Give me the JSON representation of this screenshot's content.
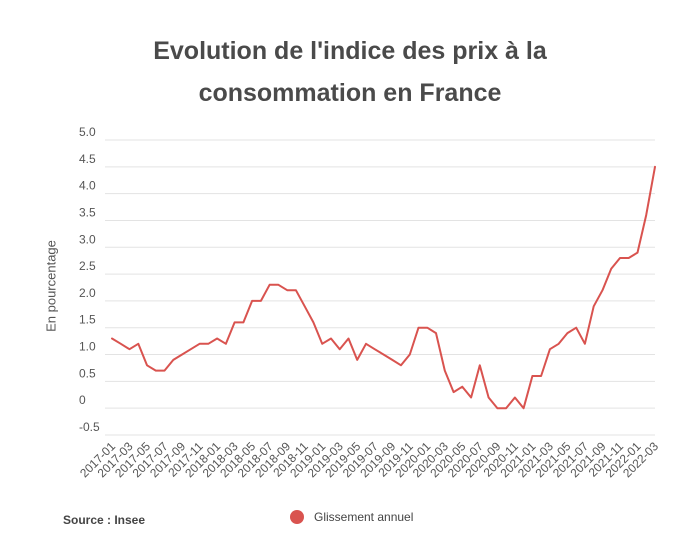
{
  "colors": {
    "line": "#d9534f",
    "grid": "#e3e3e3",
    "text": "#555555"
  },
  "source": "Source : Insee",
  "chart_data": {
    "type": "line",
    "title": [
      "Evolution de l'indice des prix à la",
      "consommation en France"
    ],
    "ylabel": "En pourcentage",
    "ylim": [
      -0.5,
      5.0
    ],
    "yticks": [
      {
        "value": 5.0,
        "label": "5.0"
      },
      {
        "value": 4.5,
        "label": "4.5"
      },
      {
        "value": 4.0,
        "label": "4.0"
      },
      {
        "value": 3.5,
        "label": "3.5"
      },
      {
        "value": 3.0,
        "label": "3.0"
      },
      {
        "value": 2.5,
        "label": "2.5"
      },
      {
        "value": 2.0,
        "label": "2.0"
      },
      {
        "value": 1.5,
        "label": "1.5"
      },
      {
        "value": 1.0,
        "label": "1.0"
      },
      {
        "value": 0.5,
        "label": "0.5"
      },
      {
        "value": 0,
        "label": "0"
      },
      {
        "value": -0.5,
        "label": "-0.5"
      }
    ],
    "grid": true,
    "legend": "bottom",
    "x": [
      "2017-01",
      "2017-02",
      "2017-03",
      "2017-04",
      "2017-05",
      "2017-06",
      "2017-07",
      "2017-08",
      "2017-09",
      "2017-10",
      "2017-11",
      "2017-12",
      "2018-01",
      "2018-02",
      "2018-03",
      "2018-04",
      "2018-05",
      "2018-06",
      "2018-07",
      "2018-08",
      "2018-09",
      "2018-10",
      "2018-11",
      "2018-12",
      "2019-01",
      "2019-02",
      "2019-03",
      "2019-04",
      "2019-05",
      "2019-06",
      "2019-07",
      "2019-08",
      "2019-09",
      "2019-10",
      "2019-11",
      "2019-12",
      "2020-01",
      "2020-02",
      "2020-03",
      "2020-04",
      "2020-05",
      "2020-06",
      "2020-07",
      "2020-08",
      "2020-09",
      "2020-10",
      "2020-11",
      "2020-12",
      "2021-01",
      "2021-02",
      "2021-03",
      "2021-04",
      "2021-05",
      "2021-06",
      "2021-07",
      "2021-08",
      "2021-09",
      "2021-10",
      "2021-11",
      "2021-12",
      "2022-01",
      "2022-02",
      "2022-03"
    ],
    "xtick_labels": [
      "2017-01",
      "2017-03",
      "2017-05",
      "2017-07",
      "2017-09",
      "2017-11",
      "2018-01",
      "2018-03",
      "2018-05",
      "2018-07",
      "2018-09",
      "2018-11",
      "2019-01",
      "2019-03",
      "2019-05",
      "2019-07",
      "2019-09",
      "2019-11",
      "2020-01",
      "2020-03",
      "2020-05",
      "2020-07",
      "2020-09",
      "2020-11",
      "2021-01",
      "2021-03",
      "2021-05",
      "2021-07",
      "2021-09",
      "2021-11",
      "2022-01",
      "2022-03"
    ],
    "series": [
      {
        "name": "Glissement annuel",
        "values": [
          1.3,
          1.2,
          1.1,
          1.2,
          0.8,
          0.7,
          0.7,
          0.9,
          1.0,
          1.1,
          1.2,
          1.2,
          1.3,
          1.2,
          1.6,
          1.6,
          2.0,
          2.0,
          2.3,
          2.3,
          2.2,
          2.2,
          1.9,
          1.6,
          1.2,
          1.3,
          1.1,
          1.3,
          0.9,
          1.2,
          1.1,
          1.0,
          0.9,
          0.8,
          1.0,
          1.5,
          1.5,
          1.4,
          0.7,
          0.3,
          0.4,
          0.2,
          0.8,
          0.2,
          0.0,
          0.0,
          0.2,
          0.0,
          0.6,
          0.6,
          1.1,
          1.2,
          1.4,
          1.5,
          1.2,
          1.9,
          2.2,
          2.6,
          2.8,
          2.8,
          2.9,
          3.6,
          4.5
        ]
      }
    ]
  }
}
